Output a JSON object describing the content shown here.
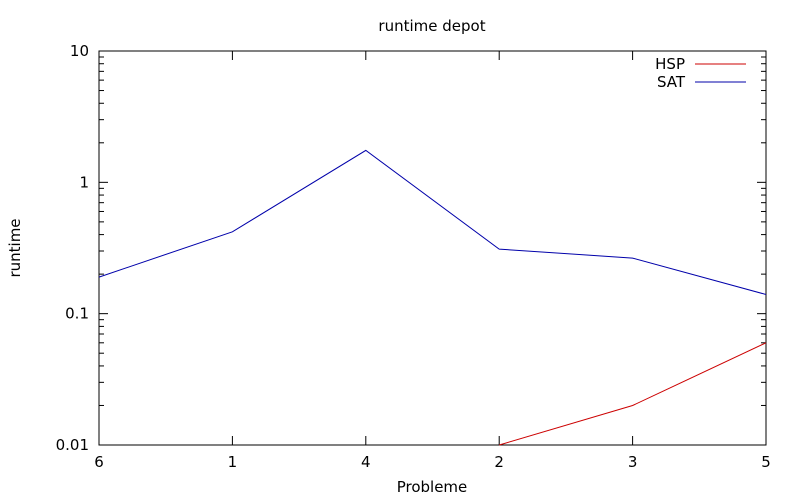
{
  "chart_data": {
    "type": "line",
    "title": "runtime depot",
    "xlabel": "Probleme",
    "ylabel": "runtime",
    "categories": [
      "6",
      "1",
      "4",
      "2",
      "3",
      "5"
    ],
    "yscale": "log",
    "ylim": [
      0.01,
      10
    ],
    "yticks": [
      "0.01",
      "0.1",
      "1",
      "10"
    ],
    "grid": false,
    "legend_position": "top-right",
    "series": [
      {
        "name": "HSP",
        "color": "#cc0000",
        "values": [
          null,
          null,
          null,
          0.01,
          0.02,
          0.06
        ]
      },
      {
        "name": "SAT",
        "color": "#0000aa",
        "values": [
          0.19,
          0.42,
          1.75,
          0.31,
          0.265,
          0.14
        ]
      }
    ]
  }
}
